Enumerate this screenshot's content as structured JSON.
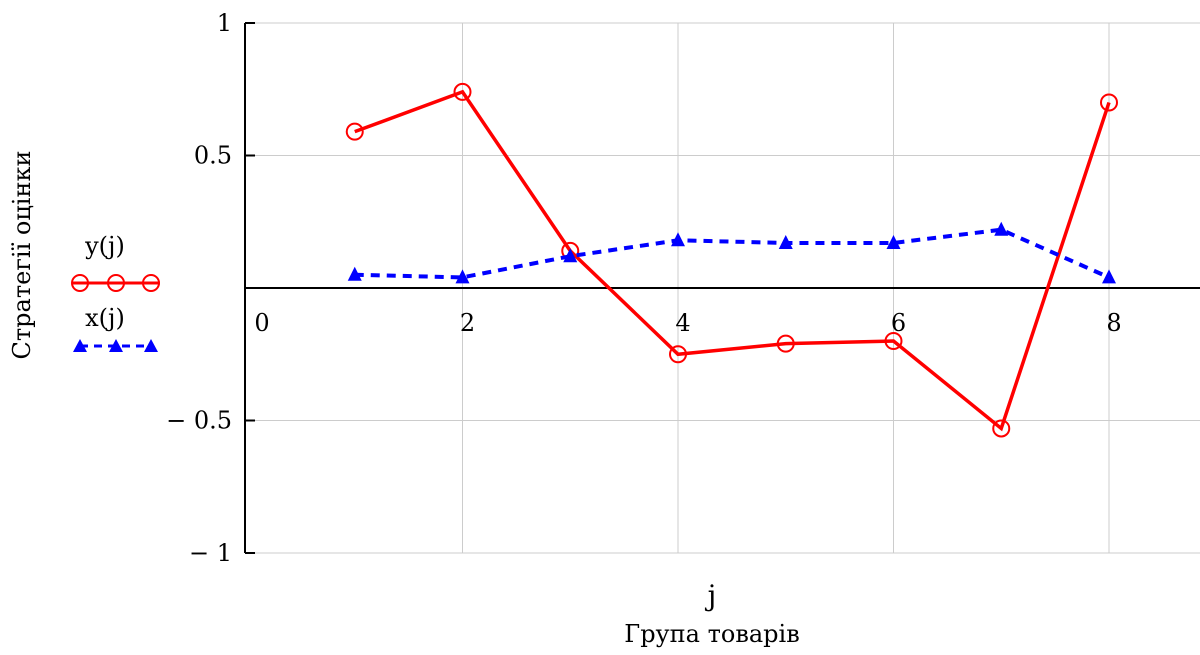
{
  "chart_data": {
    "type": "line",
    "title": "",
    "xlabel_var": "j",
    "xlabel": "Група товарів",
    "ylabel": "Стратегії оцінки",
    "xlim": [
      0,
      9
    ],
    "ylim": [
      -1,
      1
    ],
    "x_ticks": [
      0,
      2,
      4,
      6,
      8
    ],
    "x_tick_labels": [
      "0",
      "2",
      "4",
      "6",
      "8"
    ],
    "y_ticks": [
      1,
      0.5,
      -0.5,
      -1
    ],
    "y_tick_labels": [
      "1",
      "0.5",
      "− 0.5",
      "− 1"
    ],
    "grid": true,
    "legend_position": "left",
    "x": [
      1,
      2,
      3,
      4,
      5,
      6,
      7,
      8
    ],
    "series": [
      {
        "name": "y(j)",
        "values": [
          0.59,
          0.74,
          0.14,
          -0.25,
          -0.21,
          -0.2,
          -0.53,
          0.7
        ],
        "color": "#ff0000",
        "marker": "circle",
        "line_style": "solid"
      },
      {
        "name": "x(j)",
        "values": [
          0.05,
          0.04,
          0.12,
          0.18,
          0.17,
          0.17,
          0.22,
          0.04
        ],
        "color": "#0000ff",
        "marker": "triangle",
        "line_style": "dashed"
      }
    ]
  }
}
